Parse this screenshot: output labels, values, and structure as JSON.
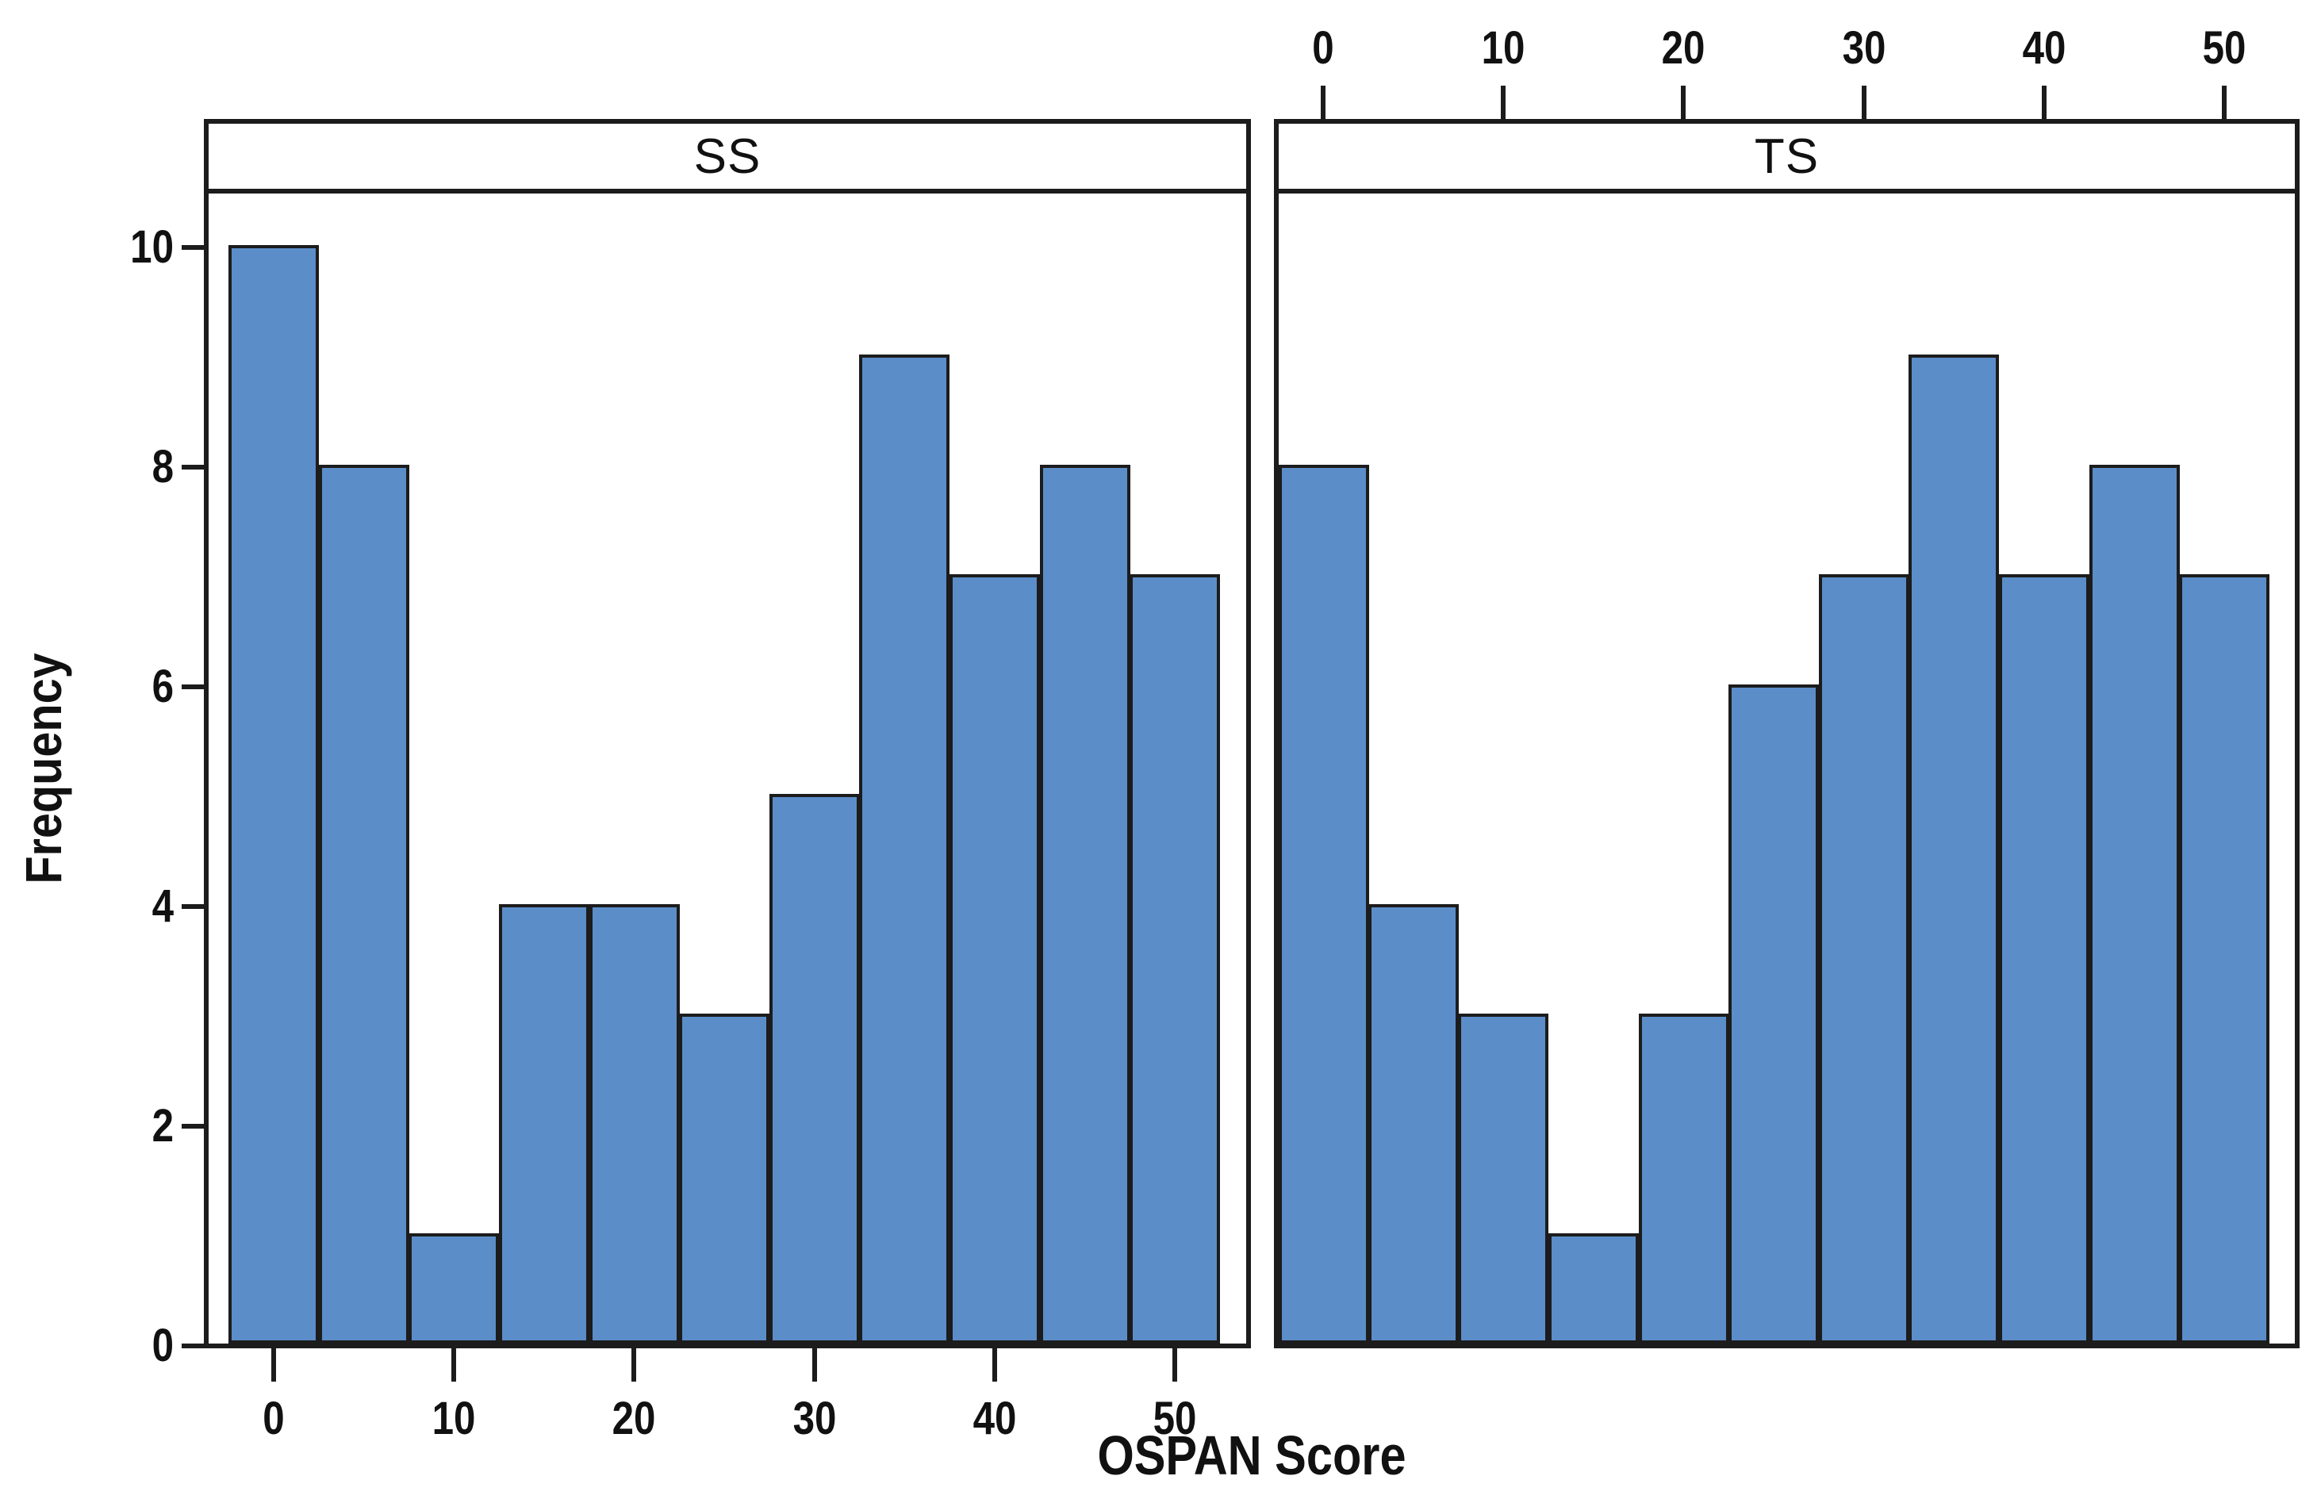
{
  "figure": {
    "background": "#ffffff"
  },
  "chart_data": {
    "type": "bar",
    "subtype": "histogram-faceted",
    "title": "",
    "xlabel": "OSPAN Score",
    "ylabel": "Frequency",
    "facets": [
      "SS",
      "TS"
    ],
    "bin_centers": [
      0,
      5,
      10,
      15,
      20,
      25,
      30,
      35,
      40,
      45,
      50
    ],
    "bin_width": 5,
    "series": [
      {
        "name": "SS",
        "values": [
          10,
          8,
          1,
          4,
          4,
          3,
          5,
          9,
          7,
          8,
          7
        ]
      },
      {
        "name": "TS",
        "values": [
          8,
          4,
          3,
          1,
          3,
          6,
          7,
          9,
          7,
          8,
          7
        ]
      }
    ],
    "xticks": [
      0,
      10,
      20,
      30,
      40,
      50
    ],
    "yticks": [
      0,
      2,
      4,
      6,
      8,
      10
    ],
    "ylim": [
      0,
      10.5
    ],
    "xlim": [
      -4,
      54.5
    ],
    "grid": "off",
    "legend": "none",
    "bottom_axis_labels_panel": "SS",
    "top_axis_labels_panel": "TS",
    "left_axis_labels_panel": "SS",
    "bar_fill": "#5b8dc9",
    "bar_stroke": "#1c1c1c",
    "text_color": "#111111"
  }
}
